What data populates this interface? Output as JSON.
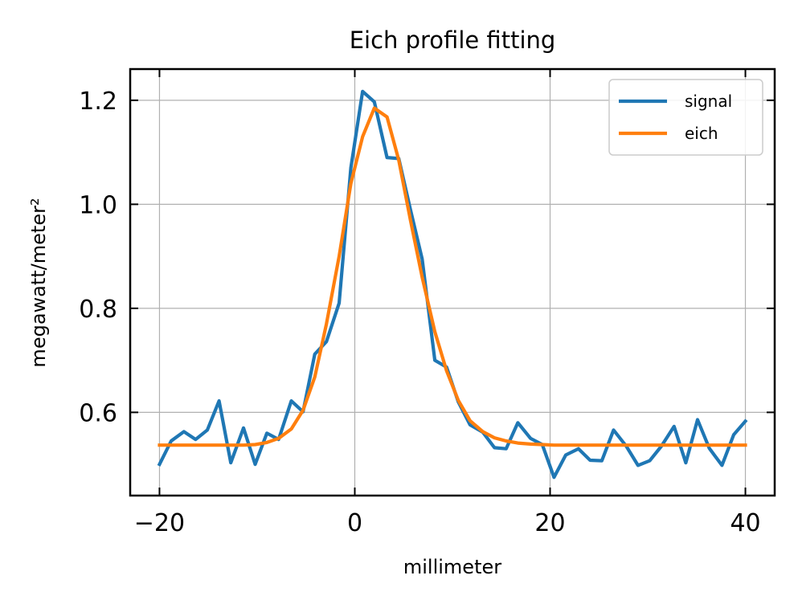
{
  "chart_data": {
    "type": "line",
    "title": "Eich profile fitting",
    "xlabel": "millimeter",
    "ylabel": "megawatt/meter²",
    "xlim": [
      -23,
      43
    ],
    "ylim": [
      0.44,
      1.26
    ],
    "xticks": [
      -20,
      0,
      20,
      40
    ],
    "xtick_labels": [
      "−20",
      "0",
      "20",
      "40"
    ],
    "yticks": [
      0.6,
      0.8,
      1.0,
      1.2
    ],
    "ytick_labels": [
      "0.6",
      "0.8",
      "1.0",
      "1.2"
    ],
    "grid": true,
    "legend_position": "top-right",
    "series": [
      {
        "name": "signal",
        "color": "#1f77b4",
        "x": [
          -20,
          -18.8,
          -17.5,
          -16.3,
          -15.1,
          -13.9,
          -12.7,
          -11.4,
          -10.2,
          -9,
          -7.8,
          -6.5,
          -5.3,
          -4.1,
          -2.9,
          -1.6,
          -0.4,
          0.8,
          2,
          3.3,
          4.5,
          5.7,
          6.9,
          8.2,
          9.4,
          10.6,
          11.8,
          13.1,
          14.3,
          15.5,
          16.7,
          18,
          19.2,
          20.4,
          21.6,
          22.9,
          24.1,
          25.3,
          26.5,
          27.8,
          29,
          30.2,
          31.4,
          32.7,
          33.9,
          35.1,
          36.3,
          37.6,
          38.8,
          40
        ],
        "y": [
          0.5,
          0.545,
          0.563,
          0.548,
          0.566,
          0.622,
          0.503,
          0.57,
          0.5,
          0.56,
          0.548,
          0.622,
          0.601,
          0.712,
          0.736,
          0.81,
          1.07,
          1.217,
          1.197,
          1.09,
          1.088,
          0.99,
          0.895,
          0.7,
          0.687,
          0.62,
          0.576,
          0.562,
          0.532,
          0.53,
          0.58,
          0.55,
          0.538,
          0.475,
          0.518,
          0.53,
          0.508,
          0.507,
          0.566,
          0.535,
          0.498,
          0.507,
          0.535,
          0.573,
          0.503,
          0.586,
          0.531,
          0.498,
          0.557,
          0.583
        ]
      },
      {
        "name": "eich",
        "color": "#ff7f0e",
        "x": [
          -20,
          -18.8,
          -17.5,
          -16.3,
          -15.1,
          -13.9,
          -12.7,
          -11.4,
          -10.2,
          -9,
          -7.8,
          -6.5,
          -5.3,
          -4.1,
          -2.9,
          -1.6,
          -0.4,
          0.8,
          2,
          3.3,
          4.5,
          5.7,
          6.9,
          8.2,
          9.4,
          10.6,
          11.8,
          13.1,
          14.3,
          15.5,
          16.7,
          18,
          19.2,
          20.4,
          21.6,
          22.9,
          24.1,
          25.3,
          26.5,
          27.8,
          29,
          30.2,
          31.4,
          32.7,
          33.9,
          35.1,
          36.3,
          37.6,
          38.8,
          40
        ],
        "y": [
          0.537,
          0.537,
          0.537,
          0.537,
          0.537,
          0.537,
          0.537,
          0.537,
          0.538,
          0.542,
          0.55,
          0.568,
          0.604,
          0.668,
          0.77,
          0.9,
          1.04,
          1.13,
          1.185,
          1.168,
          1.085,
          0.97,
          0.86,
          0.755,
          0.68,
          0.623,
          0.584,
          0.563,
          0.551,
          0.545,
          0.541,
          0.539,
          0.538,
          0.537,
          0.537,
          0.537,
          0.537,
          0.537,
          0.537,
          0.537,
          0.537,
          0.537,
          0.537,
          0.537,
          0.537,
          0.537,
          0.537,
          0.537,
          0.537,
          0.537
        ]
      }
    ]
  }
}
